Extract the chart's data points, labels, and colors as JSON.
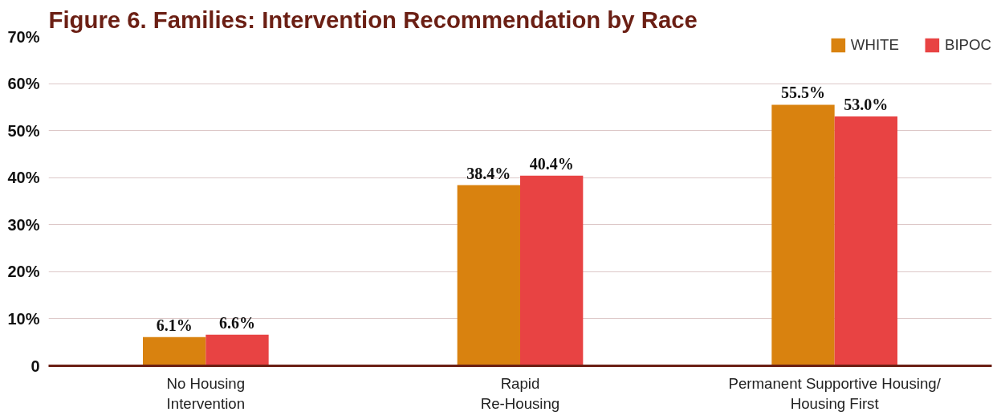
{
  "chart_data": {
    "type": "bar",
    "title": "Figure 6. Families: Intervention Recommendation by Race",
    "categories": [
      "No Housing\nIntervention",
      "Rapid\nRe-Housing",
      "Permanent Supportive Housing/\nHousing First"
    ],
    "series": [
      {
        "name": "WHITE",
        "color": "#d9820f",
        "values": [
          6.1,
          38.4,
          55.5
        ],
        "value_labels": [
          "6.1%",
          "38.4%",
          "55.5%"
        ]
      },
      {
        "name": "BIPOC",
        "color": "#e84343",
        "values": [
          6.6,
          40.4,
          53.0
        ],
        "value_labels": [
          "6.6%",
          "40.4%",
          "53.0%"
        ]
      }
    ],
    "ylim": [
      0,
      70
    ],
    "yticks": [
      0,
      {
        "value": 10,
        "label": "10%"
      },
      {
        "value": 20,
        "label": "20%"
      },
      {
        "value": 30,
        "label": "30%"
      },
      {
        "value": 40,
        "label": "40%"
      },
      {
        "value": 50,
        "label": "50%"
      },
      {
        "value": 60,
        "label": "60%"
      },
      {
        "value": 70,
        "label": "70%"
      }
    ],
    "grid": "y",
    "legend": "top right"
  }
}
